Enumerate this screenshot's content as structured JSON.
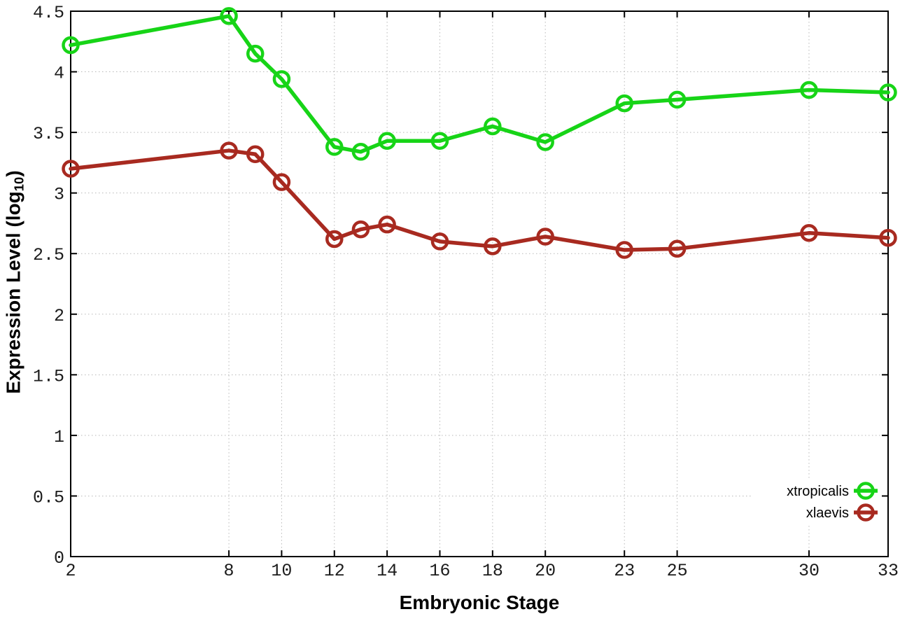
{
  "chart_data": {
    "type": "line",
    "title": "",
    "xlabel": "Embryonic Stage",
    "ylabel": "Expression Level (log10)",
    "ylabel_prefix": "Expression Level (log",
    "ylabel_sub": "10",
    "ylabel_suffix": ")",
    "xlim": [
      2,
      33
    ],
    "ylim": [
      0,
      4.5
    ],
    "grid": true,
    "grid_style": "dotted",
    "legend_position": "inside-bottom-right",
    "xticks": [
      2,
      8,
      10,
      12,
      14,
      16,
      18,
      20,
      23,
      25,
      30,
      33
    ],
    "yticks": [
      {
        "v": 0,
        "label": "0"
      },
      {
        "v": 0.5,
        "label": "0.5"
      },
      {
        "v": 1,
        "label": "1"
      },
      {
        "v": 1.5,
        "label": "1.5"
      },
      {
        "v": 2,
        "label": "2"
      },
      {
        "v": 2.5,
        "label": "2.5"
      },
      {
        "v": 3,
        "label": "3"
      },
      {
        "v": 3.5,
        "label": "3.5"
      },
      {
        "v": 4,
        "label": "4"
      },
      {
        "v": 4.5,
        "label": "4.5"
      }
    ],
    "x": [
      2,
      8,
      9,
      10,
      12,
      13,
      14,
      16,
      18,
      20,
      23,
      25,
      30,
      33
    ],
    "series": [
      {
        "name": "xtropicalis",
        "color": "#17d417",
        "marker": "open-circle",
        "values": [
          4.22,
          4.46,
          4.15,
          3.94,
          3.38,
          3.34,
          3.43,
          3.43,
          3.55,
          3.42,
          3.74,
          3.77,
          3.85,
          3.83
        ]
      },
      {
        "name": "xlaevis",
        "color": "#a82a20",
        "marker": "open-circle",
        "values": [
          3.2,
          3.35,
          3.32,
          3.09,
          2.62,
          2.7,
          2.74,
          2.6,
          2.56,
          2.64,
          2.53,
          2.54,
          2.67,
          2.63
        ]
      }
    ],
    "colors": {
      "background": "#ffffff",
      "frame": "#000000",
      "grid": "#b8b8b8",
      "tick_label": "#1c1c1c"
    }
  }
}
